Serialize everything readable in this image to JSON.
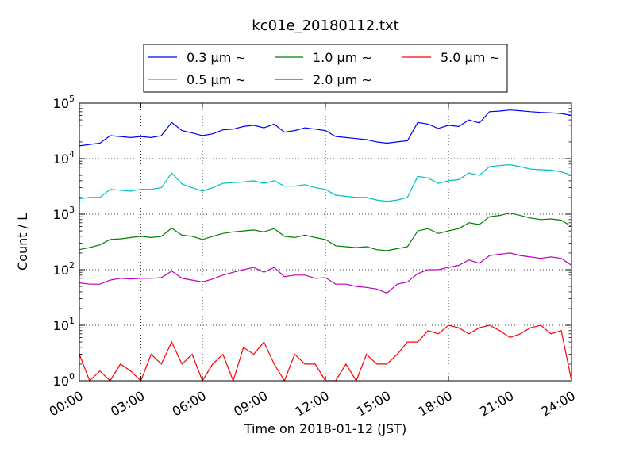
{
  "chart_data": {
    "type": "line",
    "title": "kc01e_20180112.txt",
    "xlabel": "Time on 2018-01-12 (JST)",
    "ylabel": "Count / L",
    "yscale": "log",
    "xlim": [
      "2018-01-12 00:00",
      "2018-01-13 00:00"
    ],
    "ylim": [
      1,
      100000
    ],
    "grid": true,
    "legend_position": "top",
    "x_tick_labels": [
      "00:00",
      "03:00",
      "06:00",
      "09:00",
      "12:00",
      "15:00",
      "18:00",
      "21:00",
      "24:00"
    ],
    "y_tick_labels": [
      {
        "base": "10",
        "exp": "0"
      },
      {
        "base": "10",
        "exp": "1"
      },
      {
        "base": "10",
        "exp": "2"
      },
      {
        "base": "10",
        "exp": "3"
      },
      {
        "base": "10",
        "exp": "4"
      },
      {
        "base": "10",
        "exp": "5"
      }
    ],
    "x": [
      "00:00",
      "00:30",
      "01:00",
      "01:30",
      "02:00",
      "02:30",
      "03:00",
      "03:30",
      "04:00",
      "04:30",
      "05:00",
      "05:30",
      "06:00",
      "06:30",
      "07:00",
      "07:30",
      "08:00",
      "08:30",
      "09:00",
      "09:30",
      "10:00",
      "10:30",
      "11:00",
      "11:30",
      "12:00",
      "12:30",
      "13:00",
      "13:30",
      "14:00",
      "14:30",
      "15:00",
      "15:30",
      "16:00",
      "16:30",
      "17:00",
      "17:30",
      "18:00",
      "18:30",
      "19:00",
      "19:30",
      "20:00",
      "20:30",
      "21:00",
      "21:30",
      "22:00",
      "22:30",
      "23:00",
      "23:30",
      "24:00"
    ],
    "series": [
      {
        "name": "0.3 μm ∼",
        "color": "#0000ff",
        "values": [
          17000,
          18000,
          19000,
          26000,
          25000,
          24000,
          25000,
          24000,
          26000,
          45000,
          32000,
          29000,
          26000,
          28000,
          33000,
          34000,
          38000,
          40000,
          36000,
          42000,
          30000,
          32000,
          36000,
          34000,
          32000,
          25000,
          24000,
          23000,
          22000,
          20000,
          19000,
          20000,
          21000,
          45000,
          42000,
          35000,
          40000,
          38000,
          50000,
          44000,
          70000,
          72000,
          75000,
          73000,
          70000,
          68000,
          67000,
          65000,
          60000
        ]
      },
      {
        "name": "0.5 μm ∼",
        "color": "#00bfbf",
        "values": [
          1900,
          2000,
          2000,
          2800,
          2700,
          2600,
          2800,
          2800,
          3000,
          5500,
          3500,
          3000,
          2600,
          3000,
          3600,
          3700,
          3800,
          4000,
          3600,
          4000,
          3200,
          3200,
          3400,
          3000,
          2800,
          2200,
          2100,
          2000,
          2000,
          1800,
          1700,
          1800,
          2000,
          4800,
          4500,
          3600,
          4000,
          4200,
          5500,
          5000,
          7200,
          7500,
          7800,
          7200,
          6500,
          6300,
          6200,
          5800,
          5000
        ]
      },
      {
        "name": "1.0 μm ∼",
        "color": "#008000",
        "values": [
          230,
          250,
          280,
          350,
          360,
          380,
          400,
          380,
          400,
          560,
          420,
          400,
          350,
          400,
          450,
          480,
          500,
          520,
          480,
          550,
          400,
          380,
          420,
          380,
          350,
          270,
          260,
          250,
          260,
          230,
          220,
          240,
          260,
          500,
          550,
          450,
          500,
          550,
          700,
          650,
          900,
          950,
          1050,
          950,
          850,
          800,
          820,
          780,
          600
        ]
      },
      {
        "name": "2.0 μm ∼",
        "color": "#bf00bf",
        "values": [
          58,
          55,
          55,
          65,
          70,
          68,
          70,
          70,
          72,
          95,
          70,
          65,
          60,
          68,
          80,
          90,
          100,
          110,
          90,
          110,
          75,
          80,
          80,
          70,
          72,
          55,
          55,
          50,
          48,
          45,
          38,
          55,
          60,
          85,
          100,
          100,
          110,
          120,
          150,
          130,
          180,
          190,
          200,
          180,
          170,
          160,
          170,
          160,
          120
        ]
      },
      {
        "name": "5.0 μm ∼",
        "color": "#ff0000",
        "values": [
          3,
          1,
          1.5,
          1,
          2,
          1.5,
          1,
          3,
          2,
          5,
          2,
          3,
          1,
          2,
          3,
          1,
          4,
          3,
          5,
          2,
          1,
          3,
          2,
          2,
          1,
          1,
          2,
          1,
          3,
          2,
          2,
          3,
          5,
          5,
          8,
          7,
          10,
          9,
          7,
          9,
          10,
          8,
          6,
          7,
          9,
          10,
          7,
          8,
          1
        ]
      }
    ]
  }
}
